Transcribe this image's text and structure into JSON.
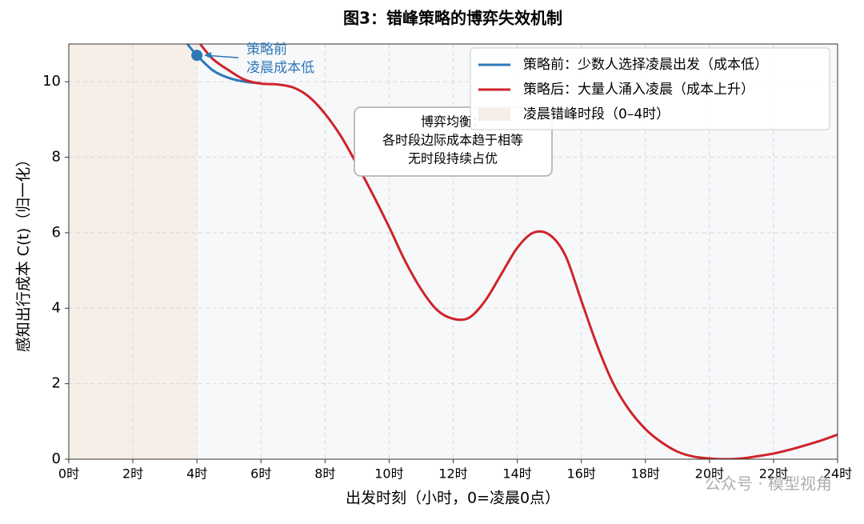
{
  "chart_data": {
    "type": "line",
    "title": "图3：错峰策略的博弈失效机制",
    "xlabel": "出发时刻（小时，0=凌晨0点）",
    "ylabel": "感知出行成本 C(t)（归一化）",
    "xlim": [
      0,
      24
    ],
    "ylim": [
      0,
      11
    ],
    "xticks": [
      {
        "value": 0,
        "label": "0时"
      },
      {
        "value": 2,
        "label": "2时"
      },
      {
        "value": 4,
        "label": "4时"
      },
      {
        "value": 6,
        "label": "6时"
      },
      {
        "value": 8,
        "label": "8时"
      },
      {
        "value": 10,
        "label": "10时"
      },
      {
        "value": 12,
        "label": "12时"
      },
      {
        "value": 14,
        "label": "14时"
      },
      {
        "value": 16,
        "label": "16时"
      },
      {
        "value": 18,
        "label": "18时"
      },
      {
        "value": 20,
        "label": "20时"
      },
      {
        "value": 22,
        "label": "22时"
      },
      {
        "value": 24,
        "label": "24时"
      }
    ],
    "yticks": [
      0,
      2,
      4,
      6,
      8,
      10
    ],
    "grid": true,
    "legend": "upper right",
    "span": {
      "name": "凌晨错峰时段（0–4时）",
      "color": "#f5efe8",
      "range": [
        0,
        4
      ]
    },
    "series": [
      {
        "name": "策略前：少数人选择凌晨出发（成本低）",
        "color": "#2e78b8",
        "x": [
          3.7,
          4,
          4.5,
          5,
          5.5,
          6
        ],
        "values": [
          11,
          10.7,
          10.3,
          10.1,
          10.0,
          9.96
        ]
      },
      {
        "name": "策略后：大量人涌入凌晨（成本上升）",
        "color": "#d0232a",
        "x": [
          4.1,
          4.5,
          5,
          5.5,
          6,
          6.5,
          7,
          7.5,
          8,
          8.5,
          9,
          9.5,
          10,
          10.5,
          11,
          11.5,
          12,
          12.5,
          13,
          13.5,
          14,
          14.5,
          15,
          15.5,
          16,
          16.5,
          17,
          17.5,
          18,
          18.5,
          19,
          19.5,
          20,
          20.5,
          21,
          21.5,
          22,
          22.5,
          23,
          23.5,
          24
        ],
        "values": [
          11,
          10.6,
          10.3,
          10.05,
          9.95,
          9.93,
          9.85,
          9.6,
          9.15,
          8.55,
          7.8,
          7.0,
          6.15,
          5.25,
          4.5,
          3.95,
          3.72,
          3.75,
          4.2,
          4.9,
          5.6,
          6.0,
          5.95,
          5.4,
          4.2,
          3.0,
          2.0,
          1.3,
          0.8,
          0.45,
          0.2,
          0.07,
          0.02,
          0.0,
          0.02,
          0.08,
          0.15,
          0.25,
          0.37,
          0.5,
          0.65
        ]
      }
    ],
    "annotations": [
      {
        "lines": [
          "策略前",
          "凌晨成本低"
        ],
        "xy": [
          4,
          10.7
        ],
        "color": "#2e78b8"
      },
      {
        "lines": [
          "博弈均衡：",
          "各时段边际成本趋于相等",
          "无时段持续占优"
        ]
      }
    ],
    "watermark": "公众号 · 模型视角"
  }
}
